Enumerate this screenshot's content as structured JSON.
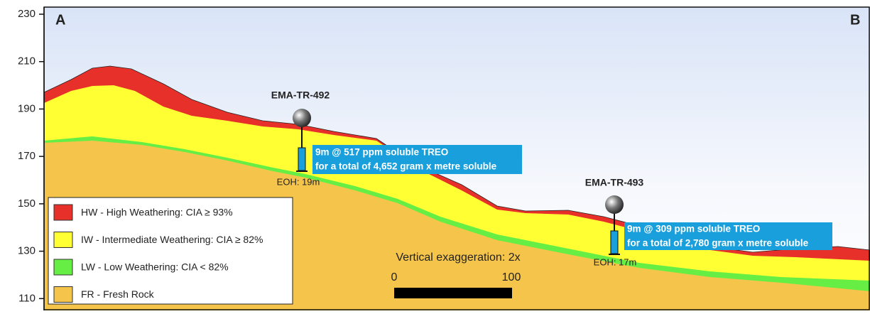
{
  "axis": {
    "ylim": [
      105,
      233
    ],
    "yticks": [
      110,
      130,
      150,
      170,
      190,
      210,
      230
    ]
  },
  "section": {
    "start_label": "A",
    "end_label": "B"
  },
  "holes": [
    {
      "name": "EMA-TR-492",
      "result_lines": [
        "9m @ 517 ppm soluble TREO",
        "for a total of 4,652 gram x metre soluble"
      ],
      "eoh": "EOH: 19m"
    },
    {
      "name": "EMA-TR-493",
      "result_lines": [
        "9m @ 309 ppm soluble TREO",
        "for a total of 2,780 gram x metre soluble"
      ],
      "eoh": "EOH: 17m"
    }
  ],
  "legend": [
    {
      "label": "HW - High Weathering: CIA ≥ 93%",
      "color": "#e8302a"
    },
    {
      "label": "IW - Intermediate Weathering: CIA ≥ 82%",
      "color": "#ffff33"
    },
    {
      "label": "LW - Low Weathering: CIA < 82%",
      "color": "#66ee44"
    },
    {
      "label": "FR - Fresh Rock",
      "color": "#f5c44a"
    }
  ],
  "scale": {
    "title": "Vertical exaggeration: 2x",
    "start": "0",
    "end": "100"
  }
}
